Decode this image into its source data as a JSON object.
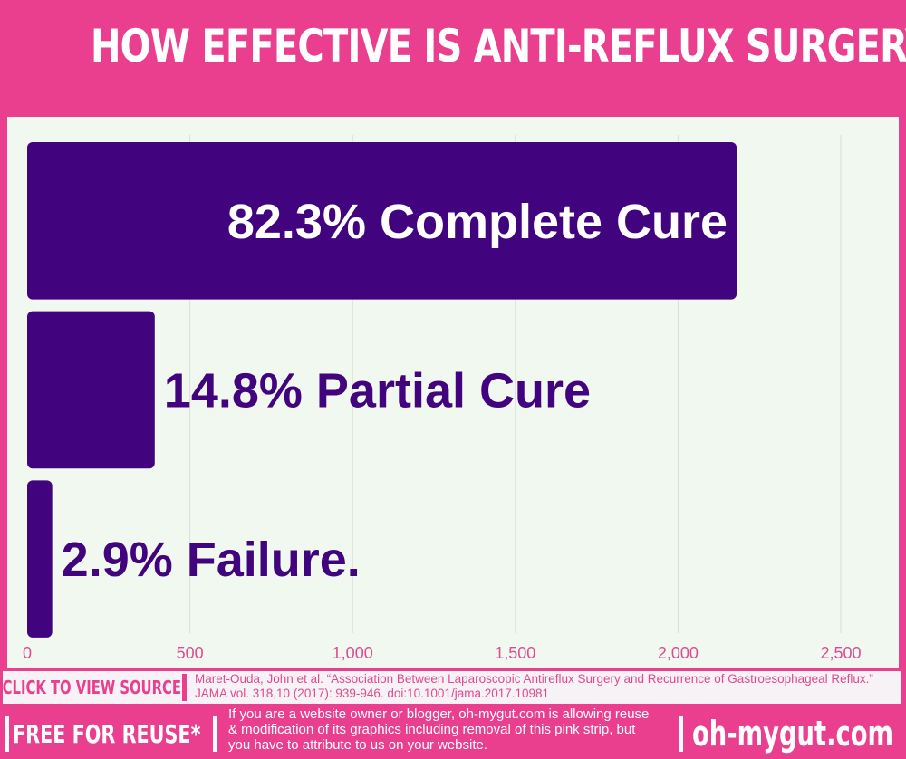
{
  "title": "HOW EFFECTIVE IS ANTI-REFLUX SURGERY?",
  "chart_data": {
    "type": "bar",
    "orientation": "horizontal",
    "categories": [
      "82.3% Complete Cure",
      "14.8% Partial Cure",
      "2.9% Failure."
    ],
    "values": [
      2180,
      392,
      77
    ],
    "xlim": [
      0,
      2500
    ],
    "xticks": [
      "0",
      "500",
      "1,000",
      "1,500",
      "2,000",
      "2,500"
    ],
    "tick_values": [
      0,
      500,
      1000,
      1500,
      2000,
      2500
    ],
    "grid": "vertical",
    "legend": "none"
  },
  "colors": {
    "background": "#ea3e8e",
    "panel": "#f1f8ef",
    "bar": "#42047e",
    "label_light": "#ffffff",
    "label_dark": "#42047e",
    "gridline": "#dcdcdc",
    "tick": "#e04a93"
  },
  "source": {
    "button_label": "CLICK TO VIEW SOURCE",
    "citation": "Maret-Ouda, John et al. “Association Between Laparoscopic Antireflux Surgery and Recurrence of Gastroesophageal Reflux.” JAMA vol. 318,10 (2017): 939-946. doi:10.1001/jama.2017.10981"
  },
  "reuse": {
    "label": "FREE FOR REUSE*",
    "text": "If you are a website owner or blogger, oh-mygut.com is allowing reuse & modification of its graphics including removal of  this pink strip, but you have to attribute to us on your website."
  },
  "site": "oh-mygut.com"
}
